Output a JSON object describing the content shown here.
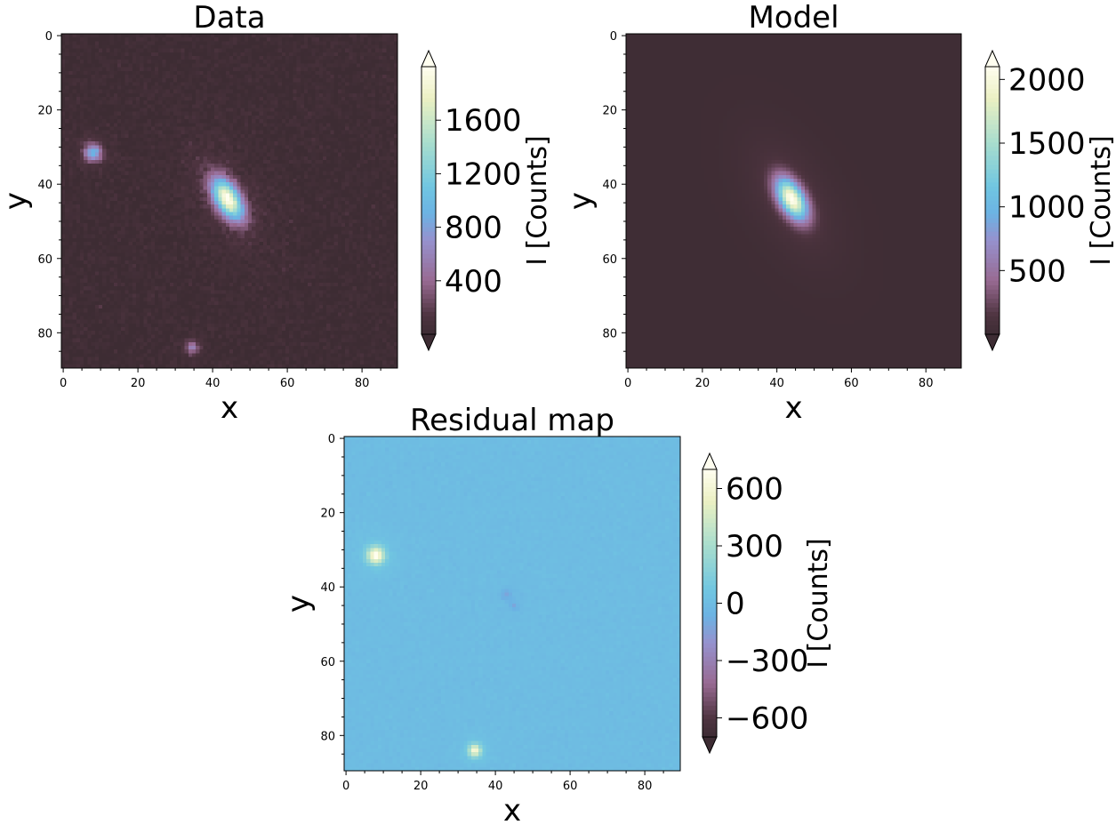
{
  "chart_data": [
    {
      "type": "heatmap",
      "title": "Data",
      "xlabel": "x",
      "ylabel": "y",
      "xlim": [
        0,
        90
      ],
      "ylim": [
        90,
        0
      ],
      "xticks": [
        "0",
        "20",
        "40",
        "60",
        "80"
      ],
      "yticks": [
        "0",
        "20",
        "40",
        "60",
        "80"
      ],
      "background": 20,
      "sources": [
        {
          "x": 8.5,
          "y": 32,
          "peak": 900,
          "sx": 1.6,
          "sy": 1.6,
          "angle": 0
        },
        {
          "x": 44.5,
          "y": 44.5,
          "peak": 1900,
          "sx": 2.2,
          "sy": 4.2,
          "angle": -30
        },
        {
          "x": 35,
          "y": 84.5,
          "peak": 550,
          "sx": 1.2,
          "sy": 1.2,
          "angle": 0
        }
      ],
      "noise": 35,
      "colorbar": {
        "label": "I [Counts]",
        "min": 0,
        "max": 2000,
        "ticks": [
          400,
          800,
          1200,
          1600
        ],
        "tick_labels": [
          "400",
          "800",
          "1200",
          "1600"
        ]
      }
    },
    {
      "type": "heatmap",
      "title": "Model",
      "xlabel": "x",
      "ylabel": "y",
      "xlim": [
        0,
        90
      ],
      "ylim": [
        90,
        0
      ],
      "xticks": [
        "0",
        "20",
        "40",
        "60",
        "80"
      ],
      "yticks": [
        "0",
        "20",
        "40",
        "60",
        "80"
      ],
      "background": 20,
      "sources": [
        {
          "x": 44.5,
          "y": 44.5,
          "peak": 2000,
          "sx": 2.2,
          "sy": 4.2,
          "angle": -30
        }
      ],
      "noise": 0,
      "colorbar": {
        "label": "I [Counts]",
        "min": 0,
        "max": 2100,
        "ticks": [
          500,
          1000,
          1500,
          2000
        ],
        "tick_labels": [
          "500",
          "1000",
          "1500",
          "2000"
        ]
      }
    },
    {
      "type": "heatmap",
      "title": "Residual map",
      "xlabel": "x",
      "ylabel": "y",
      "xlim": [
        0,
        90
      ],
      "ylim": [
        90,
        0
      ],
      "xticks": [
        "0",
        "20",
        "40",
        "60",
        "80"
      ],
      "yticks": [
        "0",
        "20",
        "40",
        "60",
        "80"
      ],
      "background": 0,
      "sources": [
        {
          "x": 8.5,
          "y": 32,
          "peak": 680,
          "sx": 1.6,
          "sy": 1.6,
          "angle": 0
        },
        {
          "x": 35,
          "y": 84.5,
          "peak": 600,
          "sx": 1.2,
          "sy": 1.2,
          "angle": 0
        },
        {
          "x": 43.5,
          "y": 42.5,
          "peak": -120,
          "sx": 1.0,
          "sy": 1.0,
          "angle": 0
        },
        {
          "x": 45.5,
          "y": 45.5,
          "peak": -100,
          "sx": 0.9,
          "sy": 0.9,
          "angle": 0
        }
      ],
      "noise": 10,
      "colorbar": {
        "label": "I [Counts]",
        "min": -700,
        "max": 700,
        "ticks": [
          -600,
          -300,
          0,
          300,
          600
        ],
        "tick_labels": [
          "−600",
          "−300",
          "0",
          "300",
          "600"
        ]
      }
    }
  ]
}
